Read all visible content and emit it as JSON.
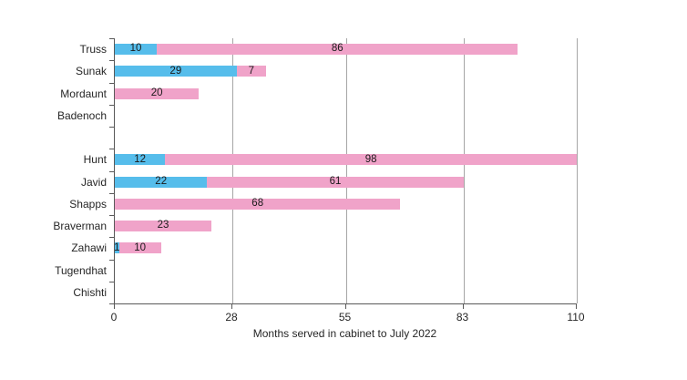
{
  "chart_data": {
    "type": "bar",
    "orientation": "horizontal",
    "stacked": true,
    "title": "",
    "xlabel": "Months served in cabinet to July 2022",
    "ylabel": "",
    "xlim": [
      0,
      110
    ],
    "x_ticks": [
      0,
      28,
      55,
      83,
      110
    ],
    "grid": "vertical-gridlines-at-ticks",
    "legend": "none",
    "value_labels": "inside-center",
    "categories": [
      "Truss",
      "Sunak",
      "Mordaunt",
      "Badenoch",
      "",
      "Hunt",
      "Javid",
      "Shapps",
      "Braverman",
      "Zahawi",
      "Tugendhat",
      "Chishti"
    ],
    "series": [
      {
        "name": "blue",
        "color": "#56bdeb",
        "values": [
          10,
          29,
          0,
          0,
          0,
          12,
          22,
          0,
          0,
          1,
          0,
          0
        ]
      },
      {
        "name": "pink",
        "color": "#f0a3c9",
        "values": [
          86,
          7,
          20,
          0,
          0,
          98,
          61,
          68,
          23,
          10,
          0,
          0
        ]
      }
    ]
  },
  "colors": {
    "background": "#ffffff",
    "bar_blue": "#56bdeb",
    "bar_pink": "#f0a3c9",
    "gridline": "#a6a6a6",
    "axis": "#595959",
    "text": "#262626"
  }
}
